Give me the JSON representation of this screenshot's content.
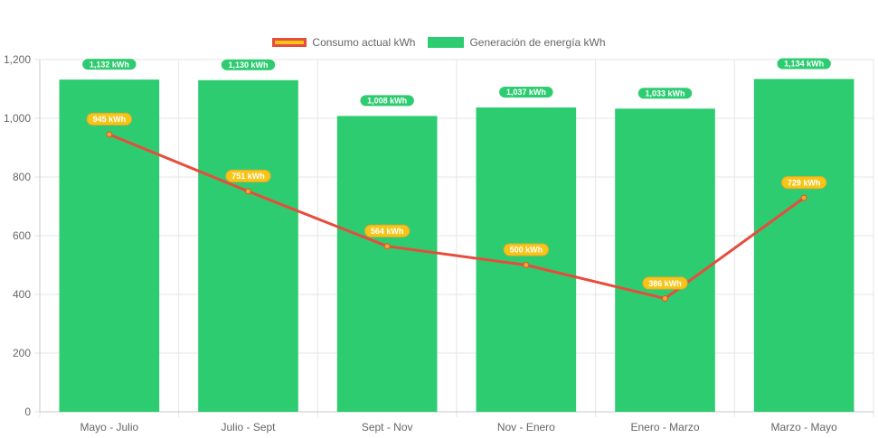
{
  "legend": {
    "line_label": "Consumo actual kWh",
    "bar_label": "Generación de energía kWh"
  },
  "colors": {
    "bar": "#2ecc71",
    "line": "#e74c3c",
    "line_point": "#f5a623",
    "label_yellow": "#f5c518",
    "grid": "#e6e6e6"
  },
  "chart_data": {
    "type": "bar",
    "categories": [
      "Mayo - Julio",
      "Julio - Sept",
      "Sept - Nov",
      "Nov - Enero",
      "Enero - Marzo",
      "Marzo - Mayo"
    ],
    "series": [
      {
        "name": "Generación de energía kWh",
        "kind": "bar",
        "values": [
          1132,
          1130,
          1008,
          1037,
          1033,
          1134
        ],
        "labels": [
          "1,132 kWh",
          "1,130 kWh",
          "1,008 kWh",
          "1,037 kWh",
          "1,033 kWh",
          "1,134 kWh"
        ]
      },
      {
        "name": "Consumo actual kWh",
        "kind": "line",
        "values": [
          945,
          751,
          564,
          500,
          386,
          729
        ],
        "labels": [
          "945 kWh",
          "751 kWh",
          "564 kWh",
          "500 kWh",
          "386 kWh",
          "729 kWh"
        ]
      }
    ],
    "ylim": [
      0,
      1200
    ],
    "yticks": [
      0,
      200,
      400,
      600,
      800,
      1000,
      1200
    ],
    "ytick_labels": [
      "0",
      "200",
      "400",
      "600",
      "800",
      "1,000",
      "1,200"
    ],
    "grid": true,
    "legend_position": "top-center"
  }
}
